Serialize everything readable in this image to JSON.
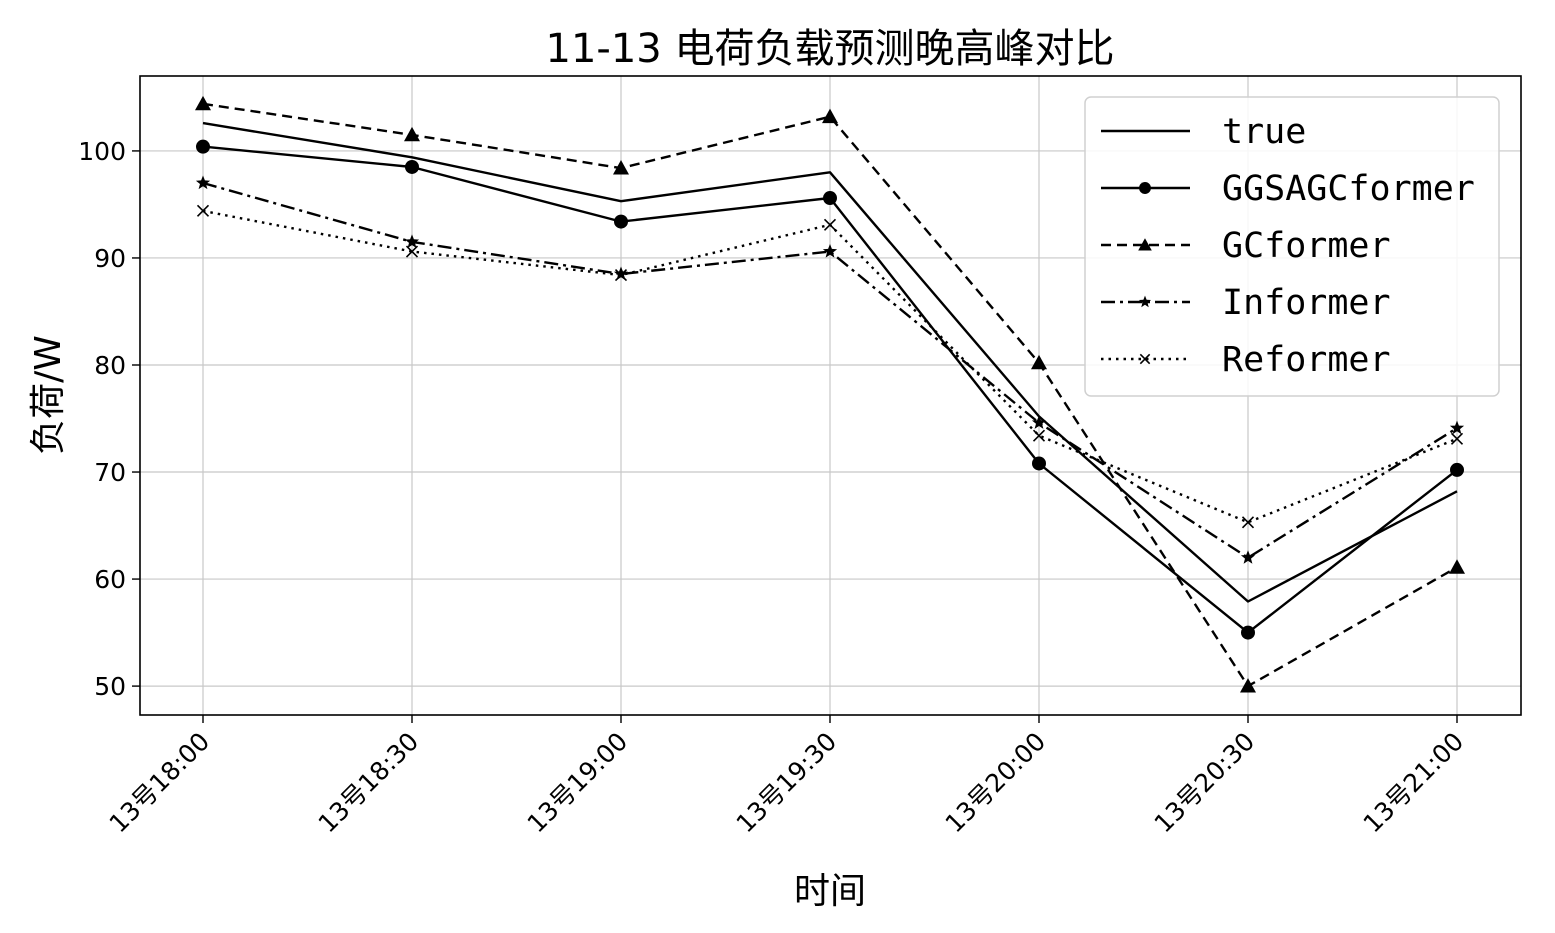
{
  "chart_data": {
    "type": "line",
    "title": "11-13 电荷负载预测晚高峰对比",
    "xlabel": "时间",
    "ylabel": "负荷/W",
    "categories": [
      "13号18:00",
      "13号18:30",
      "13号19:00",
      "13号19:30",
      "13号20:00",
      "13号20:30",
      "13号21:00"
    ],
    "ylim": [
      47.3,
      107.0
    ],
    "yticks": [
      50,
      60,
      70,
      80,
      90,
      100
    ],
    "grid": true,
    "legend_position": "top-right",
    "series": [
      {
        "name": "true",
        "values": [
          102.6,
          99.4,
          95.3,
          98.0,
          75.2,
          57.9,
          68.2
        ],
        "line_style": "solid",
        "marker": "none",
        "color": "#000000"
      },
      {
        "name": "GGSAGCformer",
        "values": [
          100.4,
          98.5,
          93.4,
          95.6,
          70.8,
          55.0,
          70.2
        ],
        "line_style": "solid",
        "marker": "circle",
        "color": "#000000"
      },
      {
        "name": "GCformer",
        "values": [
          104.4,
          101.5,
          98.4,
          103.2,
          80.2,
          50.0,
          61.1
        ],
        "line_style": "dashed",
        "marker": "triangle",
        "color": "#000000"
      },
      {
        "name": "Informer",
        "values": [
          97.0,
          91.5,
          88.5,
          90.6,
          74.6,
          62.0,
          74.1
        ],
        "line_style": "dashdot",
        "marker": "star",
        "color": "#000000"
      },
      {
        "name": "Reformer",
        "values": [
          94.4,
          90.6,
          88.4,
          93.1,
          73.4,
          65.3,
          73.1
        ],
        "line_style": "dotted",
        "marker": "x",
        "color": "#000000"
      }
    ]
  }
}
